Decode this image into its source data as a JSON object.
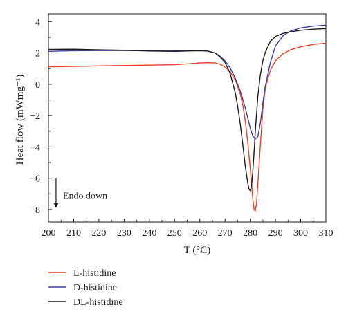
{
  "chart_data": {
    "type": "line",
    "xlabel": "T (°C)",
    "ylabel": "Heat flow (mWmg⁻¹)",
    "xlim": [
      200,
      310
    ],
    "ylim": [
      -8.8,
      4.5
    ],
    "xticks": [
      200,
      210,
      220,
      230,
      240,
      250,
      260,
      270,
      280,
      290,
      300,
      310
    ],
    "yticks": [
      4,
      2,
      0,
      -2,
      -4,
      -6,
      -8
    ],
    "grid": false,
    "legend_position": "bottom-left, below plot",
    "annotation": {
      "text": "Endo down",
      "x": 203.0,
      "y": -7.1,
      "arrow_from_y": -6.0,
      "arrow_to_y": -7.9
    },
    "series": [
      {
        "name": "L-histidine",
        "color": "#e8402c",
        "x": [
          200,
          210,
          220,
          230,
          240,
          250,
          255,
          260,
          263,
          266,
          268,
          270,
          272,
          274,
          276,
          277,
          278,
          279,
          280,
          281,
          281.5,
          282,
          282.5,
          283,
          284,
          285,
          286,
          288,
          290,
          293,
          296,
          300,
          305,
          310
        ],
        "y": [
          1.12,
          1.14,
          1.17,
          1.2,
          1.22,
          1.25,
          1.3,
          1.36,
          1.38,
          1.36,
          1.28,
          1.1,
          0.8,
          0.3,
          -0.6,
          -1.3,
          -2.3,
          -3.7,
          -5.4,
          -7.3,
          -8.0,
          -8.1,
          -7.6,
          -6.4,
          -3.9,
          -1.6,
          -0.2,
          0.9,
          1.5,
          1.95,
          2.2,
          2.4,
          2.55,
          2.62
        ]
      },
      {
        "name": "D-histidine",
        "color": "#3d3f9e",
        "x": [
          200,
          205,
          210,
          220,
          230,
          240,
          250,
          255,
          260,
          263,
          266,
          268,
          270,
          272,
          274,
          276,
          278,
          280,
          281,
          282,
          283,
          284,
          285,
          286,
          288,
          290,
          293,
          296,
          300,
          305,
          310
        ],
        "y": [
          2.1,
          2.12,
          2.14,
          2.15,
          2.15,
          2.14,
          2.14,
          2.15,
          2.15,
          2.12,
          2.0,
          1.8,
          1.5,
          1.05,
          0.4,
          -0.4,
          -1.5,
          -2.8,
          -3.3,
          -3.5,
          -3.35,
          -2.5,
          -1.2,
          -0.1,
          1.4,
          2.45,
          3.1,
          3.4,
          3.6,
          3.72,
          3.78
        ]
      },
      {
        "name": "DL-histidine",
        "color": "#1a1a1a",
        "x": [
          200,
          205,
          210,
          220,
          230,
          240,
          250,
          255,
          260,
          263,
          266,
          268,
          270,
          272,
          274,
          275,
          276,
          277,
          278,
          279,
          279.5,
          280,
          280.5,
          281,
          281.5,
          282,
          283,
          284,
          285,
          286,
          288,
          290,
          293,
          296,
          300,
          305,
          310
        ],
        "y": [
          2.22,
          2.23,
          2.24,
          2.2,
          2.17,
          2.12,
          2.1,
          2.12,
          2.14,
          2.12,
          2.0,
          1.75,
          1.4,
          0.7,
          -0.5,
          -1.4,
          -2.5,
          -3.8,
          -5.2,
          -6.3,
          -6.7,
          -6.8,
          -6.5,
          -5.6,
          -4.4,
          -3.0,
          -0.8,
          0.6,
          1.5,
          2.05,
          2.75,
          3.05,
          3.25,
          3.35,
          3.45,
          3.52,
          3.56
        ]
      }
    ]
  }
}
